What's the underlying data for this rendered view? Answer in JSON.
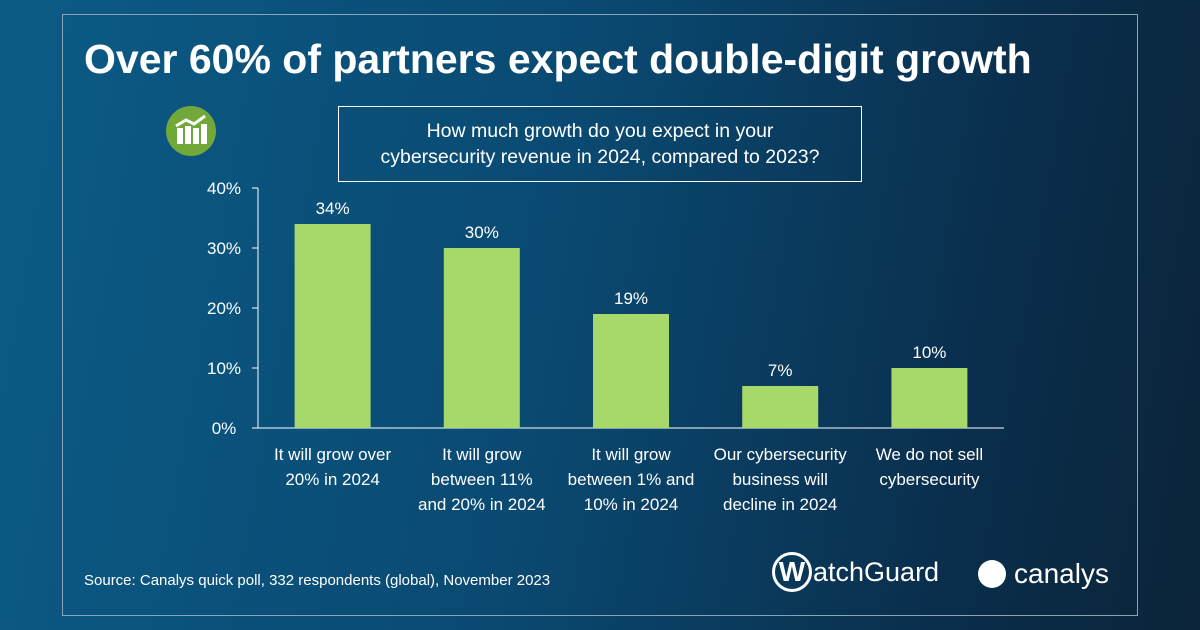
{
  "title": "Over 60% of partners expect double-digit growth",
  "question": [
    "How much growth do you expect in your",
    "cybersecurity revenue in 2024, compared to 2023?"
  ],
  "source": "Source: Canalys quick poll, 332 respondents (global), November 2023",
  "logos": {
    "watchguard": "WatchGuard",
    "canalys": "canalys"
  },
  "colors": {
    "bar": "#a6d86a",
    "text": "#ffffff"
  },
  "chart_data": {
    "type": "bar",
    "title": "How much growth do you expect in your cybersecurity revenue in 2024, compared to 2023?",
    "categories": [
      [
        "It will grow over",
        "20% in 2024"
      ],
      [
        "It will grow",
        "between 11%",
        "and 20% in 2024"
      ],
      [
        "It will grow",
        "between 1% and",
        "10% in 2024"
      ],
      [
        "Our cybersecurity",
        "business will",
        "decline in 2024"
      ],
      [
        "We do not sell",
        "cybersecurity"
      ]
    ],
    "values": [
      34,
      30,
      19,
      7,
      10
    ],
    "data_labels": [
      "34%",
      "30%",
      "19%",
      "7%",
      "10%"
    ],
    "yticks": [
      "0%",
      "10%",
      "20%",
      "30%",
      "40%"
    ],
    "ylim": [
      0,
      40
    ],
    "grid": false
  }
}
